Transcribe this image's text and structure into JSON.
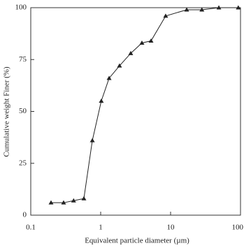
{
  "chart_data": {
    "type": "line",
    "x_label": "Equivalent particle diameter (µm)",
    "y_label": "Cumulative weight Finer (%)",
    "x": [
      0.195,
      0.295,
      0.41,
      0.575,
      0.76,
      1.02,
      1.32,
      1.86,
      2.69,
      3.89,
      5.25,
      8.5,
      17,
      28,
      49,
      93
    ],
    "series": [
      {
        "color": "#222222",
        "marker": "triangle",
        "values": [
          6,
          6,
          7,
          8,
          36,
          55,
          66,
          72,
          78,
          83,
          84,
          96,
          99,
          99,
          100,
          100
        ]
      }
    ],
    "xscale": "log",
    "xlim": [
      0.1,
      100
    ],
    "xticks": [
      0.1,
      1,
      10,
      100
    ],
    "ylim": [
      0,
      100
    ],
    "yticks": [
      0,
      25,
      50,
      75,
      100
    ],
    "grid": false
  }
}
